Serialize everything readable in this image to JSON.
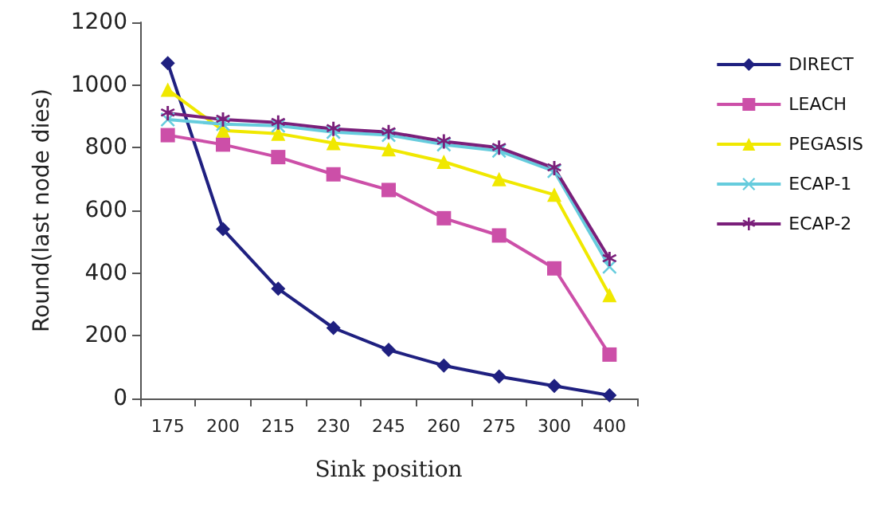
{
  "chart_data": {
    "type": "line",
    "xlabel": "Sink position",
    "ylabel": "Round(last node dies)",
    "categories": [
      "175",
      "200",
      "215",
      "230",
      "245",
      "260",
      "275",
      "300",
      "400"
    ],
    "ylim": [
      0,
      1200
    ],
    "yticks": [
      0,
      200,
      400,
      600,
      800,
      1000,
      1200
    ],
    "grid": false,
    "legend": "right",
    "line_style": "solid",
    "series": [
      {
        "name": "DIRECT",
        "color": "#1f2080",
        "marker": "diamond",
        "values": [
          1070,
          540,
          350,
          225,
          155,
          105,
          70,
          40,
          10
        ]
      },
      {
        "name": "LEACH",
        "color": "#cc4fa8",
        "marker": "square",
        "values": [
          840,
          810,
          770,
          715,
          665,
          575,
          520,
          415,
          140
        ]
      },
      {
        "name": "PEGASIS",
        "color": "#f0e800",
        "marker": "triangle",
        "values": [
          985,
          855,
          845,
          815,
          795,
          755,
          700,
          650,
          330
        ]
      },
      {
        "name": "ECAP-1",
        "color": "#66ccdd",
        "marker": "cross",
        "values": [
          890,
          875,
          870,
          850,
          840,
          810,
          790,
          725,
          420
        ]
      },
      {
        "name": "ECAP-2",
        "color": "#7a1f7a",
        "marker": "star",
        "values": [
          910,
          890,
          880,
          860,
          850,
          820,
          800,
          735,
          445
        ]
      }
    ]
  }
}
